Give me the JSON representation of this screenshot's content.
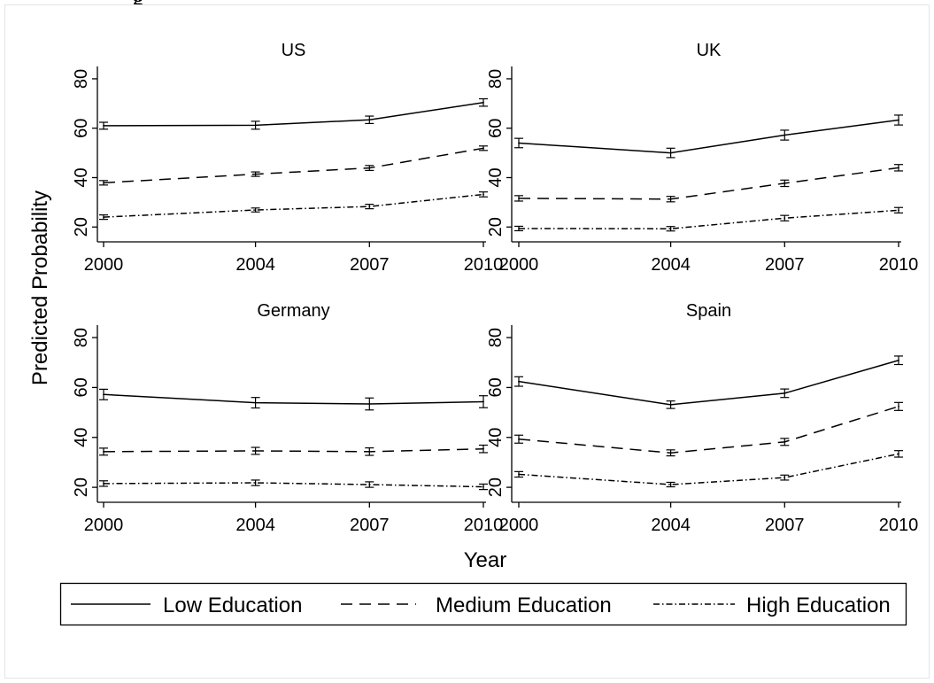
{
  "header_fragment": "g",
  "chart_data": {
    "type": "line",
    "layout": "facet-2x2",
    "ylabel": "Predicted Probability",
    "xlabel": "Year",
    "x": [
      2000,
      2004,
      2007,
      2010
    ],
    "x_tick_labels": [
      "2000",
      "2004",
      "2007",
      "2010"
    ],
    "ylim": [
      14,
      85
    ],
    "y_ticks": [
      20,
      40,
      60,
      80
    ],
    "error_bars": true,
    "legend": {
      "placement": "bottom",
      "entries": [
        {
          "name": "Low Education",
          "style": "solid"
        },
        {
          "name": "Medium Education",
          "style": "dashed"
        },
        {
          "name": "High Education",
          "style": "dash-dot"
        }
      ]
    },
    "panels": [
      {
        "title": "US",
        "series": [
          {
            "name": "Low Education",
            "values": [
              61,
              61.2,
              63.4,
              70.4
            ],
            "lower": [
              59.6,
              59.6,
              61.9,
              68.9
            ],
            "upper": [
              62.4,
              62.8,
              64.9,
              71.9
            ]
          },
          {
            "name": "Medium Education",
            "values": [
              37.9,
              41.4,
              43.9,
              51.9
            ],
            "lower": [
              37,
              40.5,
              42.9,
              51
            ],
            "upper": [
              38.8,
              42.3,
              44.9,
              52.8
            ]
          },
          {
            "name": "High Education",
            "values": [
              24,
              26.9,
              28.3,
              33.2
            ],
            "lower": [
              23.1,
              26.1,
              27.4,
              32.2
            ],
            "upper": [
              24.9,
              27.7,
              29.2,
              34.2
            ]
          }
        ]
      },
      {
        "title": "UK",
        "series": [
          {
            "name": "Low Education",
            "values": [
              54,
              50,
              57.2,
              63.3
            ],
            "lower": [
              52.1,
              48.1,
              55.2,
              61.3
            ],
            "upper": [
              55.9,
              51.9,
              59.2,
              65.3
            ]
          },
          {
            "name": "Medium Education",
            "values": [
              31.6,
              31.3,
              37.7,
              44
            ],
            "lower": [
              30.5,
              30.2,
              36.4,
              42.7
            ],
            "upper": [
              32.7,
              32.4,
              39,
              45.3
            ]
          },
          {
            "name": "High Education",
            "values": [
              19.4,
              19.3,
              23.6,
              26.8
            ],
            "lower": [
              18.5,
              18.4,
              22.5,
              25.7
            ],
            "upper": [
              20.3,
              20.2,
              24.7,
              27.9
            ]
          }
        ]
      },
      {
        "title": "Germany",
        "series": [
          {
            "name": "Low Education",
            "values": [
              57.2,
              53.9,
              53.4,
              54.3
            ],
            "lower": [
              55.1,
              51.8,
              51,
              51.9
            ],
            "upper": [
              59.3,
              56,
              55.8,
              56.7
            ]
          },
          {
            "name": "Medium Education",
            "values": [
              34.3,
              34.6,
              34.3,
              35.4
            ],
            "lower": [
              32.9,
              33.2,
              32.8,
              33.9
            ],
            "upper": [
              35.7,
              36,
              35.8,
              36.9
            ]
          },
          {
            "name": "High Education",
            "values": [
              21.5,
              21.8,
              21.1,
              20.2
            ],
            "lower": [
              20.4,
              20.7,
              20,
              19.1
            ],
            "upper": [
              22.6,
              22.9,
              22.2,
              21.3
            ]
          }
        ]
      },
      {
        "title": "Spain",
        "series": [
          {
            "name": "Low Education",
            "values": [
              62.4,
              53.1,
              57.7,
              70.9
            ],
            "lower": [
              60.5,
              51.6,
              56,
              69.2
            ],
            "upper": [
              64.3,
              54.6,
              59.4,
              72.6
            ]
          },
          {
            "name": "Medium Education",
            "values": [
              39.3,
              33.8,
              38.2,
              52.4
            ],
            "lower": [
              37.7,
              32.6,
              36.8,
              50.8
            ],
            "upper": [
              40.9,
              35,
              39.6,
              54
            ]
          },
          {
            "name": "High Education",
            "values": [
              25.2,
              21.1,
              23.9,
              33.4
            ],
            "lower": [
              24.1,
              20.2,
              22.9,
              32.1
            ],
            "upper": [
              26.3,
              22,
              24.9,
              34.7
            ]
          }
        ]
      }
    ]
  }
}
